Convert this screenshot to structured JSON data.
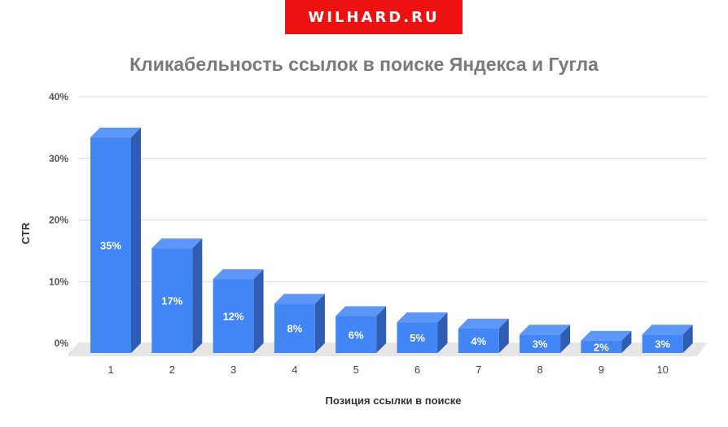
{
  "brand": {
    "text": "WILHARD.RU",
    "color": "#ee1111"
  },
  "chart_data": {
    "type": "bar",
    "title": "Кликабельность ссылок в поиске Яндекса и Гугла",
    "xlabel": "Позиция ссылки в поиске",
    "ylabel": "CTR",
    "categories": [
      "1",
      "2",
      "3",
      "4",
      "5",
      "6",
      "7",
      "8",
      "9",
      "10"
    ],
    "values": [
      35,
      17,
      12,
      8,
      6,
      5,
      4,
      3,
      2,
      3
    ],
    "value_labels": [
      "35%",
      "17%",
      "12%",
      "8%",
      "6%",
      "5%",
      "4%",
      "3%",
      "2%",
      "3%"
    ],
    "y_ticks": [
      0,
      10,
      20,
      30,
      40
    ],
    "y_tick_labels": [
      "0%",
      "10%",
      "20%",
      "30%",
      "40%"
    ],
    "ylim": [
      0,
      40
    ],
    "grid": true,
    "style": "3d",
    "colors": {
      "bar_front": "#4285f4",
      "bar_top": "#5c96f6",
      "bar_side": "#2f5db3",
      "grid": "#d9d9d9",
      "floor": "#e6e6e6"
    }
  }
}
